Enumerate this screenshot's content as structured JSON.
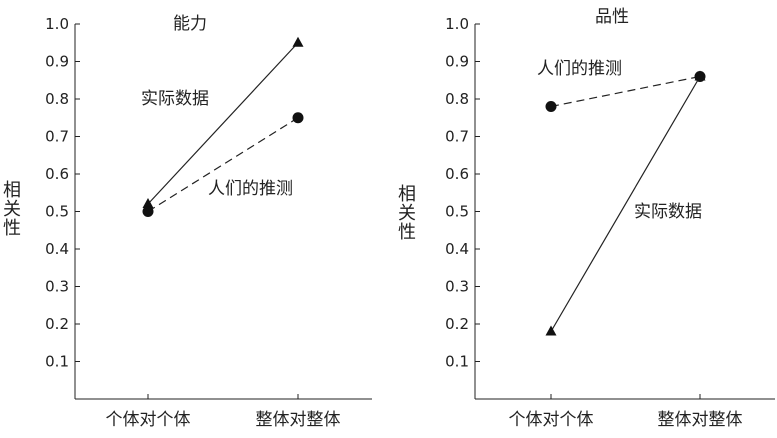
{
  "chart_data": [
    {
      "type": "line",
      "title": "能力",
      "ylabel": "相关性",
      "xlabel": "",
      "categories": [
        "个体对个体",
        "整体对整体"
      ],
      "ylim": [
        0,
        1.0
      ],
      "yticks": [
        "0.1",
        "0.2",
        "0.3",
        "0.4",
        "0.5",
        "0.6",
        "0.7",
        "0.8",
        "0.9",
        "1.0"
      ],
      "grid": false,
      "series": [
        {
          "name": "实际数据",
          "values": [
            0.52,
            0.95
          ],
          "marker": "triangle",
          "line": "solid"
        },
        {
          "name": "人们的推测",
          "values": [
            0.5,
            0.75
          ],
          "marker": "circle",
          "line": "dashed"
        }
      ]
    },
    {
      "type": "line",
      "title": "品性",
      "ylabel": "相关性",
      "xlabel": "",
      "categories": [
        "个体对个体",
        "整体对整体"
      ],
      "ylim": [
        0,
        1.0
      ],
      "yticks": [
        "0.1",
        "0.2",
        "0.3",
        "0.4",
        "0.5",
        "0.6",
        "0.7",
        "0.8",
        "0.9",
        "1.0"
      ],
      "grid": false,
      "series": [
        {
          "name": "人们的推测",
          "values": [
            0.78,
            0.86
          ],
          "marker": "circle",
          "line": "dashed"
        },
        {
          "name": "实际数据",
          "values": [
            0.18,
            0.86
          ],
          "marker": "triangle",
          "line": "solid"
        }
      ]
    }
  ]
}
